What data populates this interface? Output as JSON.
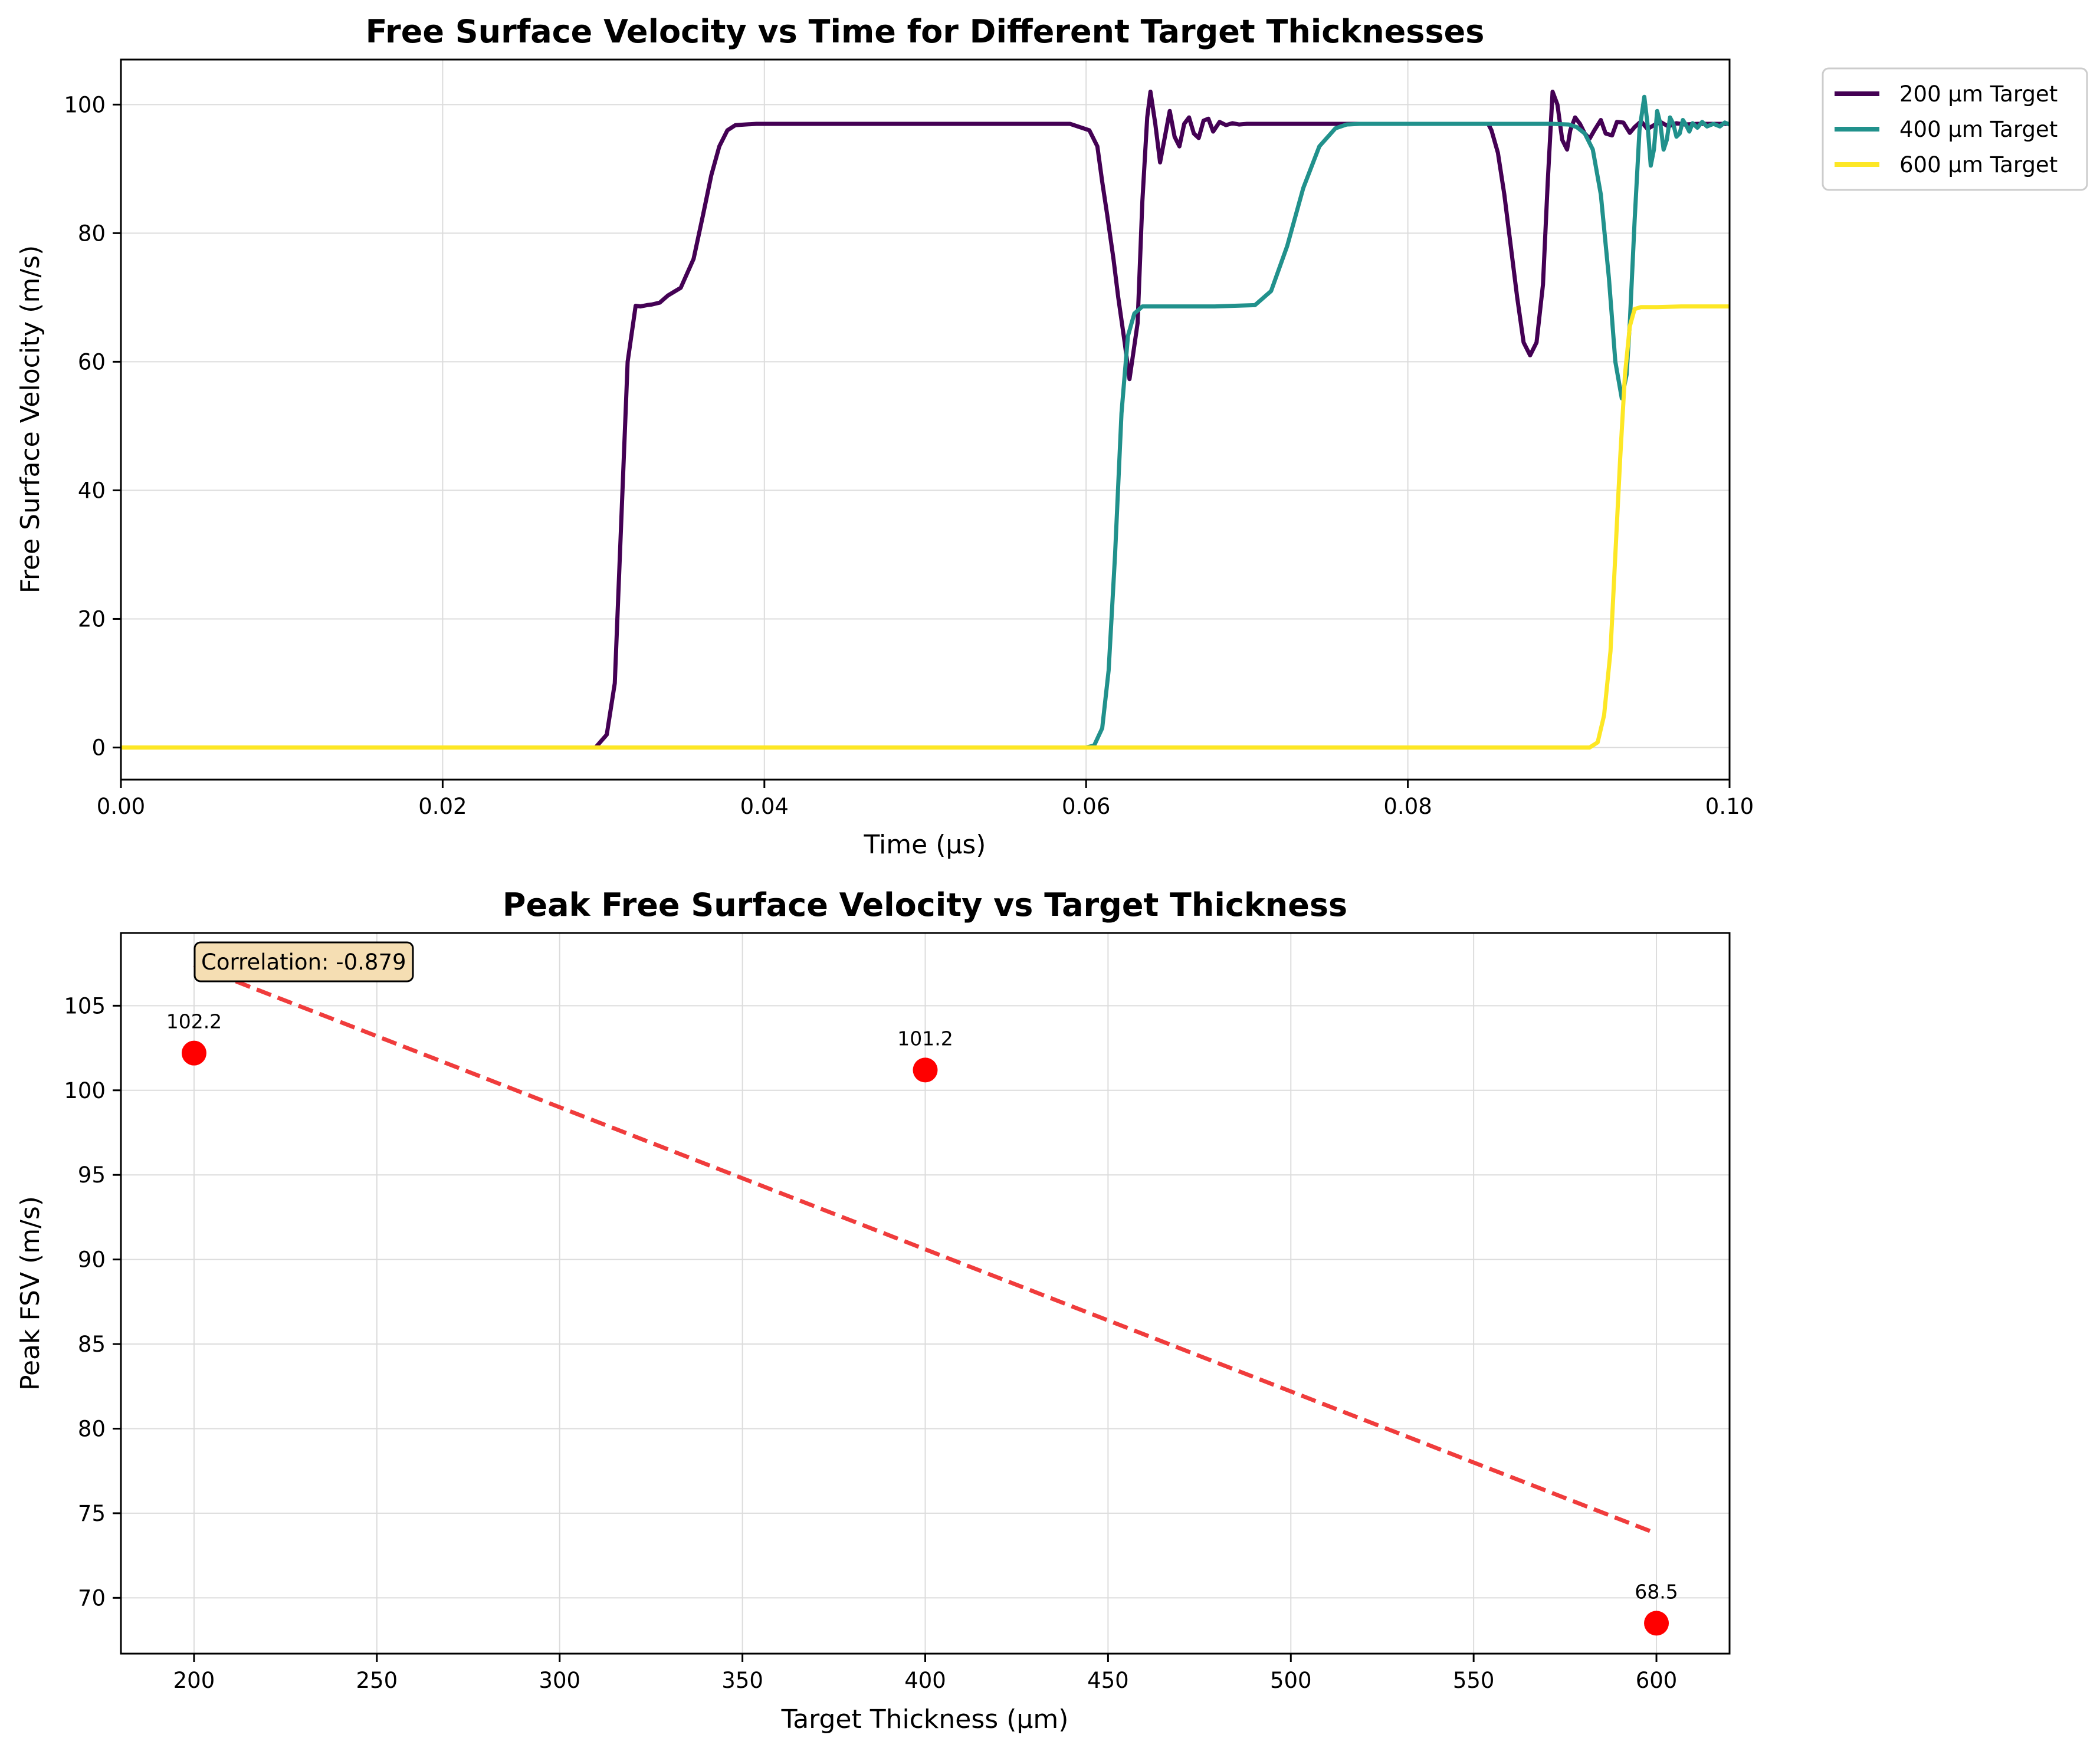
{
  "chart_data": [
    {
      "type": "line",
      "title": "Free Surface Velocity vs Time for Different Target Thicknesses",
      "xlabel": "Time (μs)",
      "ylabel": "Free Surface Velocity (m/s)",
      "xlim": [
        0.0,
        0.1
      ],
      "ylim": [
        -5,
        107
      ],
      "xticks": [
        "0.00",
        "0.02",
        "0.04",
        "0.06",
        "0.08",
        "0.10"
      ],
      "yticks": [
        "0",
        "20",
        "40",
        "60",
        "80",
        "100"
      ],
      "grid": true,
      "legend_position": "outside-top-right",
      "series": [
        {
          "name": "200 μm Target",
          "color": "#440154",
          "x": [
            0.0,
            0.0295,
            0.0302,
            0.0307,
            0.0311,
            0.0315,
            0.032,
            0.0323,
            0.0327,
            0.033,
            0.0335,
            0.034,
            0.0348,
            0.0356,
            0.0362,
            0.0367,
            0.0372,
            0.0377,
            0.0382,
            0.0388,
            0.0395,
            0.04,
            0.045,
            0.05,
            0.055,
            0.059,
            0.0602,
            0.0607,
            0.061,
            0.0613,
            0.0617,
            0.062,
            0.0624,
            0.0627,
            0.0632,
            0.0635,
            0.0638,
            0.064,
            0.0643,
            0.0646,
            0.0649,
            0.0652,
            0.0655,
            0.0658,
            0.0661,
            0.0664,
            0.0667,
            0.067,
            0.0673,
            0.0676,
            0.0679,
            0.0683,
            0.0687,
            0.0691,
            0.0695,
            0.07,
            0.0705,
            0.071,
            0.072,
            0.075,
            0.08,
            0.085,
            0.0852,
            0.0856,
            0.086,
            0.0864,
            0.0868,
            0.0872,
            0.0876,
            0.088,
            0.0884,
            0.0887,
            0.089,
            0.0893,
            0.0896,
            0.0899,
            0.0901,
            0.0904,
            0.0907,
            0.091,
            0.0913,
            0.0916,
            0.092,
            0.0923,
            0.0927,
            0.093,
            0.0934,
            0.0938,
            0.0941,
            0.0945,
            0.0949,
            0.0953,
            0.0957,
            0.0962,
            0.0967,
            0.0972,
            0.098,
            0.099,
            0.1
          ],
          "y": [
            0,
            0,
            2,
            10,
            35,
            60,
            68.7,
            68.6,
            68.8,
            68.9,
            69.2,
            70.3,
            71.5,
            76,
            83,
            89,
            93.5,
            96,
            96.8,
            96.9,
            97.0,
            97.0,
            97.0,
            97.0,
            97.0,
            97.0,
            96.0,
            93.5,
            88,
            83,
            76,
            70,
            63,
            57.3,
            66,
            85,
            98,
            102,
            97,
            91,
            95,
            99,
            95,
            93.5,
            97,
            98,
            95.5,
            94.8,
            97.5,
            97.8,
            95.8,
            97.3,
            96.8,
            97.1,
            96.9,
            97.0,
            97.0,
            97.0,
            97.0,
            97.0,
            97.0,
            97.0,
            96.0,
            92.5,
            86,
            78,
            70,
            63,
            61,
            63,
            72,
            88,
            102,
            100,
            94.5,
            93,
            96,
            98,
            97,
            95.5,
            94.7,
            96,
            97.6,
            95.5,
            95.2,
            97.3,
            97.2,
            95.6,
            96.5,
            97.4,
            96.2,
            96.8,
            97.3,
            96.6,
            97.1,
            96.9,
            97.0,
            97.0,
            97.0
          ]
        },
        {
          "name": "400 μm Target",
          "color": "#21918c",
          "x": [
            0.0,
            0.06,
            0.0605,
            0.061,
            0.0614,
            0.0618,
            0.0622,
            0.0626,
            0.063,
            0.0635,
            0.064,
            0.065,
            0.068,
            0.0705,
            0.0715,
            0.0725,
            0.0735,
            0.0745,
            0.0755,
            0.0762,
            0.077,
            0.08,
            0.085,
            0.089,
            0.09,
            0.0905,
            0.091,
            0.0915,
            0.092,
            0.0925,
            0.0929,
            0.0933,
            0.0936,
            0.0938,
            0.0941,
            0.0944,
            0.0947,
            0.0949,
            0.0951,
            0.0953,
            0.0955,
            0.0957,
            0.0959,
            0.0961,
            0.0963,
            0.0965,
            0.0967,
            0.0969,
            0.0971,
            0.0973,
            0.0975,
            0.0977,
            0.098,
            0.0983,
            0.0986,
            0.099,
            0.0994,
            0.0997,
            0.1
          ],
          "y": [
            0,
            0,
            0.3,
            3,
            12,
            30,
            52,
            64,
            67.5,
            68.6,
            68.6,
            68.6,
            68.6,
            68.8,
            71,
            78,
            87,
            93.5,
            96.3,
            96.9,
            97.0,
            97.0,
            97.0,
            97.0,
            96.9,
            96.5,
            95.5,
            93,
            86,
            73,
            60,
            54.3,
            58,
            66,
            82,
            96,
            101.2,
            97,
            90.5,
            93,
            99,
            97,
            93,
            94.5,
            98,
            97,
            95,
            95.5,
            97.6,
            96.8,
            95.8,
            97.1,
            96.4,
            97.3,
            96.6,
            97.0,
            96.6,
            97.2,
            96.9
          ]
        },
        {
          "name": "600 μm Target",
          "color": "#fde725",
          "x": [
            0.0,
            0.0913,
            0.0918,
            0.0922,
            0.0926,
            0.0929,
            0.0932,
            0.0935,
            0.0938,
            0.0941,
            0.0945,
            0.0955,
            0.097,
            0.1
          ],
          "y": [
            0,
            0,
            0.8,
            5,
            15,
            30,
            45,
            58,
            65.5,
            68.2,
            68.5,
            68.5,
            68.6,
            68.6
          ]
        }
      ]
    },
    {
      "type": "scatter",
      "title": "Peak Free Surface Velocity vs Target Thickness",
      "xlabel": "Target Thickness (μm)",
      "ylabel": "Peak FSV (m/s)",
      "xlim": [
        180,
        620
      ],
      "ylim": [
        66.7,
        109.3
      ],
      "xticks": [
        "200",
        "250",
        "300",
        "350",
        "400",
        "450",
        "500",
        "550",
        "600"
      ],
      "yticks": [
        "70",
        "75",
        "80",
        "85",
        "90",
        "95",
        "100",
        "105"
      ],
      "grid": true,
      "points": [
        {
          "x": 200,
          "y": 102.2,
          "label": "102.2"
        },
        {
          "x": 400,
          "y": 101.2,
          "label": "101.2"
        },
        {
          "x": 600,
          "y": 68.5,
          "label": "68.5"
        }
      ],
      "point_color": "#ff0000",
      "trend_line": {
        "x": [
          200,
          600
        ],
        "y": [
          107.4,
          73.8
        ],
        "color": "#f03c3c",
        "style": "dashed"
      },
      "annotation": {
        "text": "Correlation: -0.879",
        "position": "top-left",
        "box_color": "#f5deb3"
      }
    }
  ]
}
